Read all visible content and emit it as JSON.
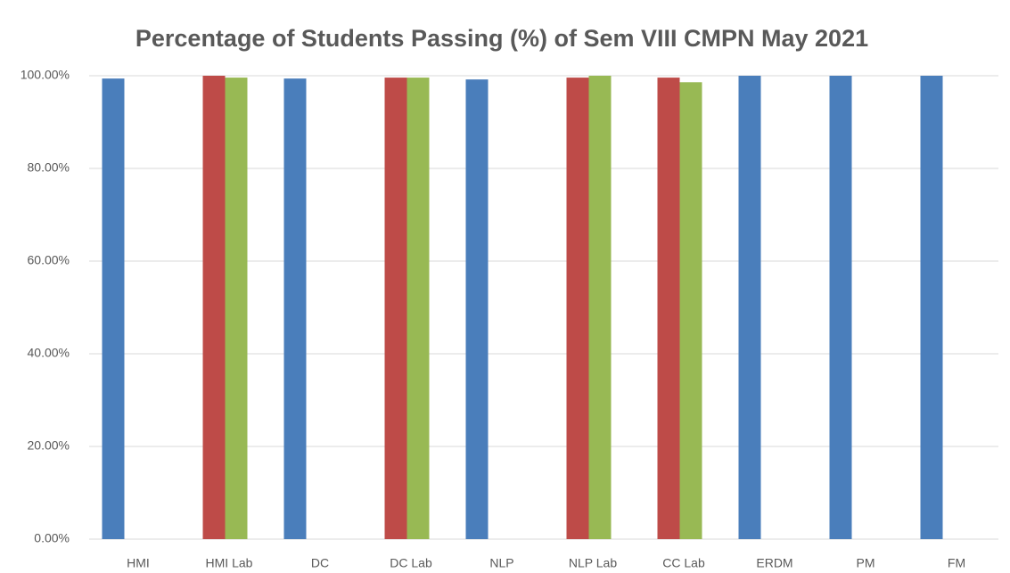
{
  "chart_data": {
    "type": "bar",
    "title": "Percentage of Students Passing (%) of Sem VIII CMPN May 2021",
    "categories": [
      "HMI",
      "HMI Lab",
      "DC",
      "DC Lab",
      "NLP",
      "NLP Lab",
      "CC Lab",
      "ERDM",
      "PM",
      "FM"
    ],
    "series": [
      {
        "color": "#4a7ebb",
        "values": [
          99.4,
          null,
          99.4,
          null,
          99.2,
          null,
          null,
          100,
          100,
          100
        ]
      },
      {
        "color": "#be4b48",
        "values": [
          null,
          100,
          null,
          99.6,
          null,
          99.6,
          99.6,
          null,
          null,
          null
        ]
      },
      {
        "color": "#98b954",
        "values": [
          null,
          99.6,
          null,
          99.6,
          null,
          100,
          98.6,
          null,
          null,
          null
        ]
      }
    ],
    "ylim": [
      0,
      100
    ],
    "yticks": [
      {
        "value": 0,
        "label": "0.00%"
      },
      {
        "value": 20,
        "label": "20.00%"
      },
      {
        "value": 40,
        "label": "40.00%"
      },
      {
        "value": 60,
        "label": "60.00%"
      },
      {
        "value": 80,
        "label": "80.00%"
      },
      {
        "value": 100,
        "label": "100.00%"
      }
    ],
    "grid": true
  }
}
